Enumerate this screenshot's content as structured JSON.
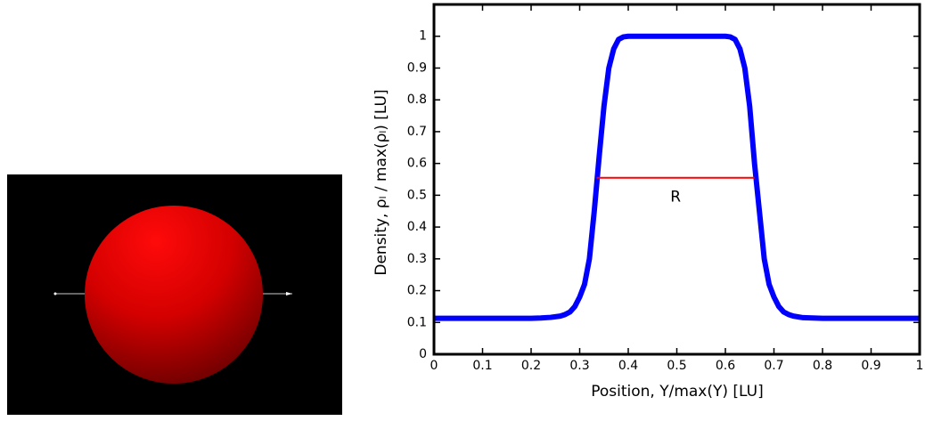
{
  "chart_data": {
    "type": "line",
    "xlabel": "Position, Y/max(Y) [LU]",
    "ylabel": "Density, ρₗ / max(ρₗ) [LU]",
    "color": "#0000ff",
    "x": [
      0,
      0.05,
      0.1,
      0.15,
      0.2,
      0.22,
      0.24,
      0.26,
      0.27,
      0.28,
      0.29,
      0.3,
      0.31,
      0.32,
      0.33,
      0.34,
      0.35,
      0.36,
      0.37,
      0.38,
      0.39,
      0.4,
      0.45,
      0.5,
      0.55,
      0.6,
      0.61,
      0.62,
      0.63,
      0.64,
      0.65,
      0.66,
      0.67,
      0.68,
      0.69,
      0.7,
      0.71,
      0.72,
      0.73,
      0.74,
      0.76,
      0.8,
      0.85,
      0.9,
      0.95,
      1
    ],
    "values": [
      0.113,
      0.113,
      0.113,
      0.113,
      0.113,
      0.114,
      0.116,
      0.12,
      0.125,
      0.133,
      0.15,
      0.18,
      0.22,
      0.3,
      0.45,
      0.62,
      0.78,
      0.9,
      0.96,
      0.99,
      0.998,
      1,
      1,
      1,
      1,
      1,
      0.998,
      0.99,
      0.96,
      0.9,
      0.78,
      0.6,
      0.45,
      0.3,
      0.22,
      0.18,
      0.15,
      0.133,
      0.125,
      0.12,
      0.115,
      0.113,
      0.113,
      0.113,
      0.113,
      0.113
    ],
    "xlim": [
      0,
      1
    ],
    "ylim": [
      0,
      1.1
    ],
    "xticks": [
      0,
      0.1,
      0.2,
      0.3,
      0.4,
      0.5,
      0.6,
      0.7,
      0.8,
      0.9,
      1
    ],
    "yticks": [
      0,
      0.1,
      0.2,
      0.3,
      0.4,
      0.5,
      0.6,
      0.7,
      0.8,
      0.9,
      1
    ],
    "annotation": {
      "label": "R",
      "x": [
        0.335,
        0.66
      ],
      "y": 0.555,
      "color": "#ff0000"
    }
  }
}
